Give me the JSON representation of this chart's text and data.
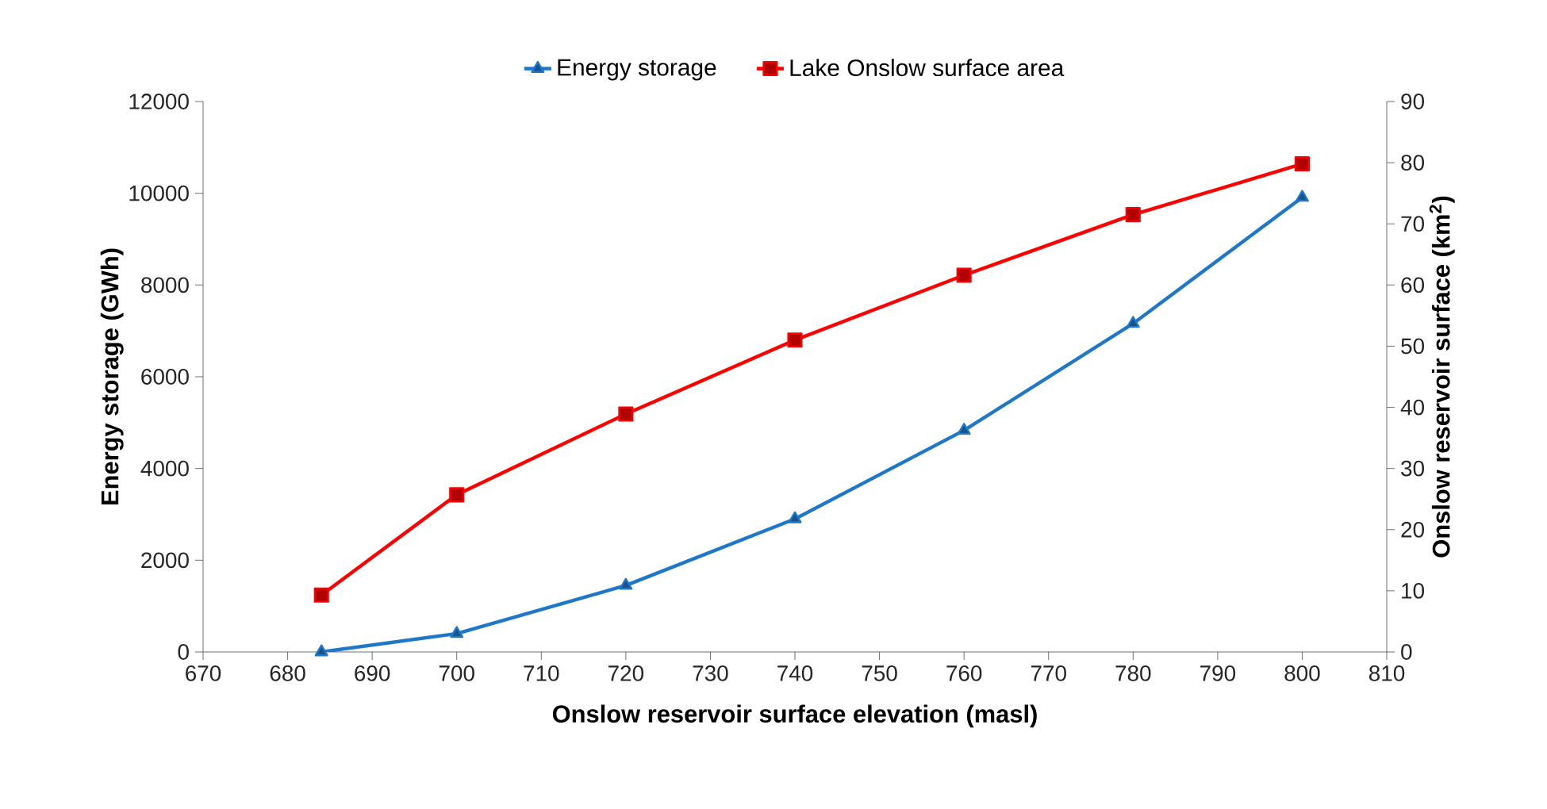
{
  "chart_data": {
    "type": "line",
    "xlabel": "Onslow reservoir surface elevation (masl)",
    "ylabel": "Energy storage (GWh)",
    "y2label": "Onslow reservoir surface (km$^{2}$)",
    "x": [
      684,
      700,
      720,
      740,
      760,
      780,
      800
    ],
    "series": [
      {
        "name": "Energy storage",
        "color": "#1f77c8",
        "marker": "triangle",
        "values": [
          0,
          400,
          1450,
          2900,
          4830,
          7160,
          9910
        ]
      },
      {
        "name": "Lake Onslow surface area",
        "color": "#ff0000",
        "marker": "square",
        "axis": "y2",
        "values": [
          9.3,
          25.7,
          38.9,
          51.0,
          61.6,
          71.5,
          79.8
        ]
      }
    ],
    "xlim": [
      670,
      810
    ],
    "xticks": [
      670,
      680,
      690,
      700,
      710,
      720,
      730,
      740,
      750,
      760,
      770,
      780,
      790,
      800,
      810
    ],
    "ylim": [
      0,
      12000
    ],
    "yticks": [
      0,
      2000,
      4000,
      6000,
      8000,
      10000,
      12000
    ],
    "y2lim": [
      0,
      90
    ],
    "y2ticks": [
      0,
      10,
      20,
      30,
      40,
      50,
      60,
      70,
      80,
      90
    ],
    "grid": false,
    "legend": "top",
    "line_style": "solid"
  }
}
